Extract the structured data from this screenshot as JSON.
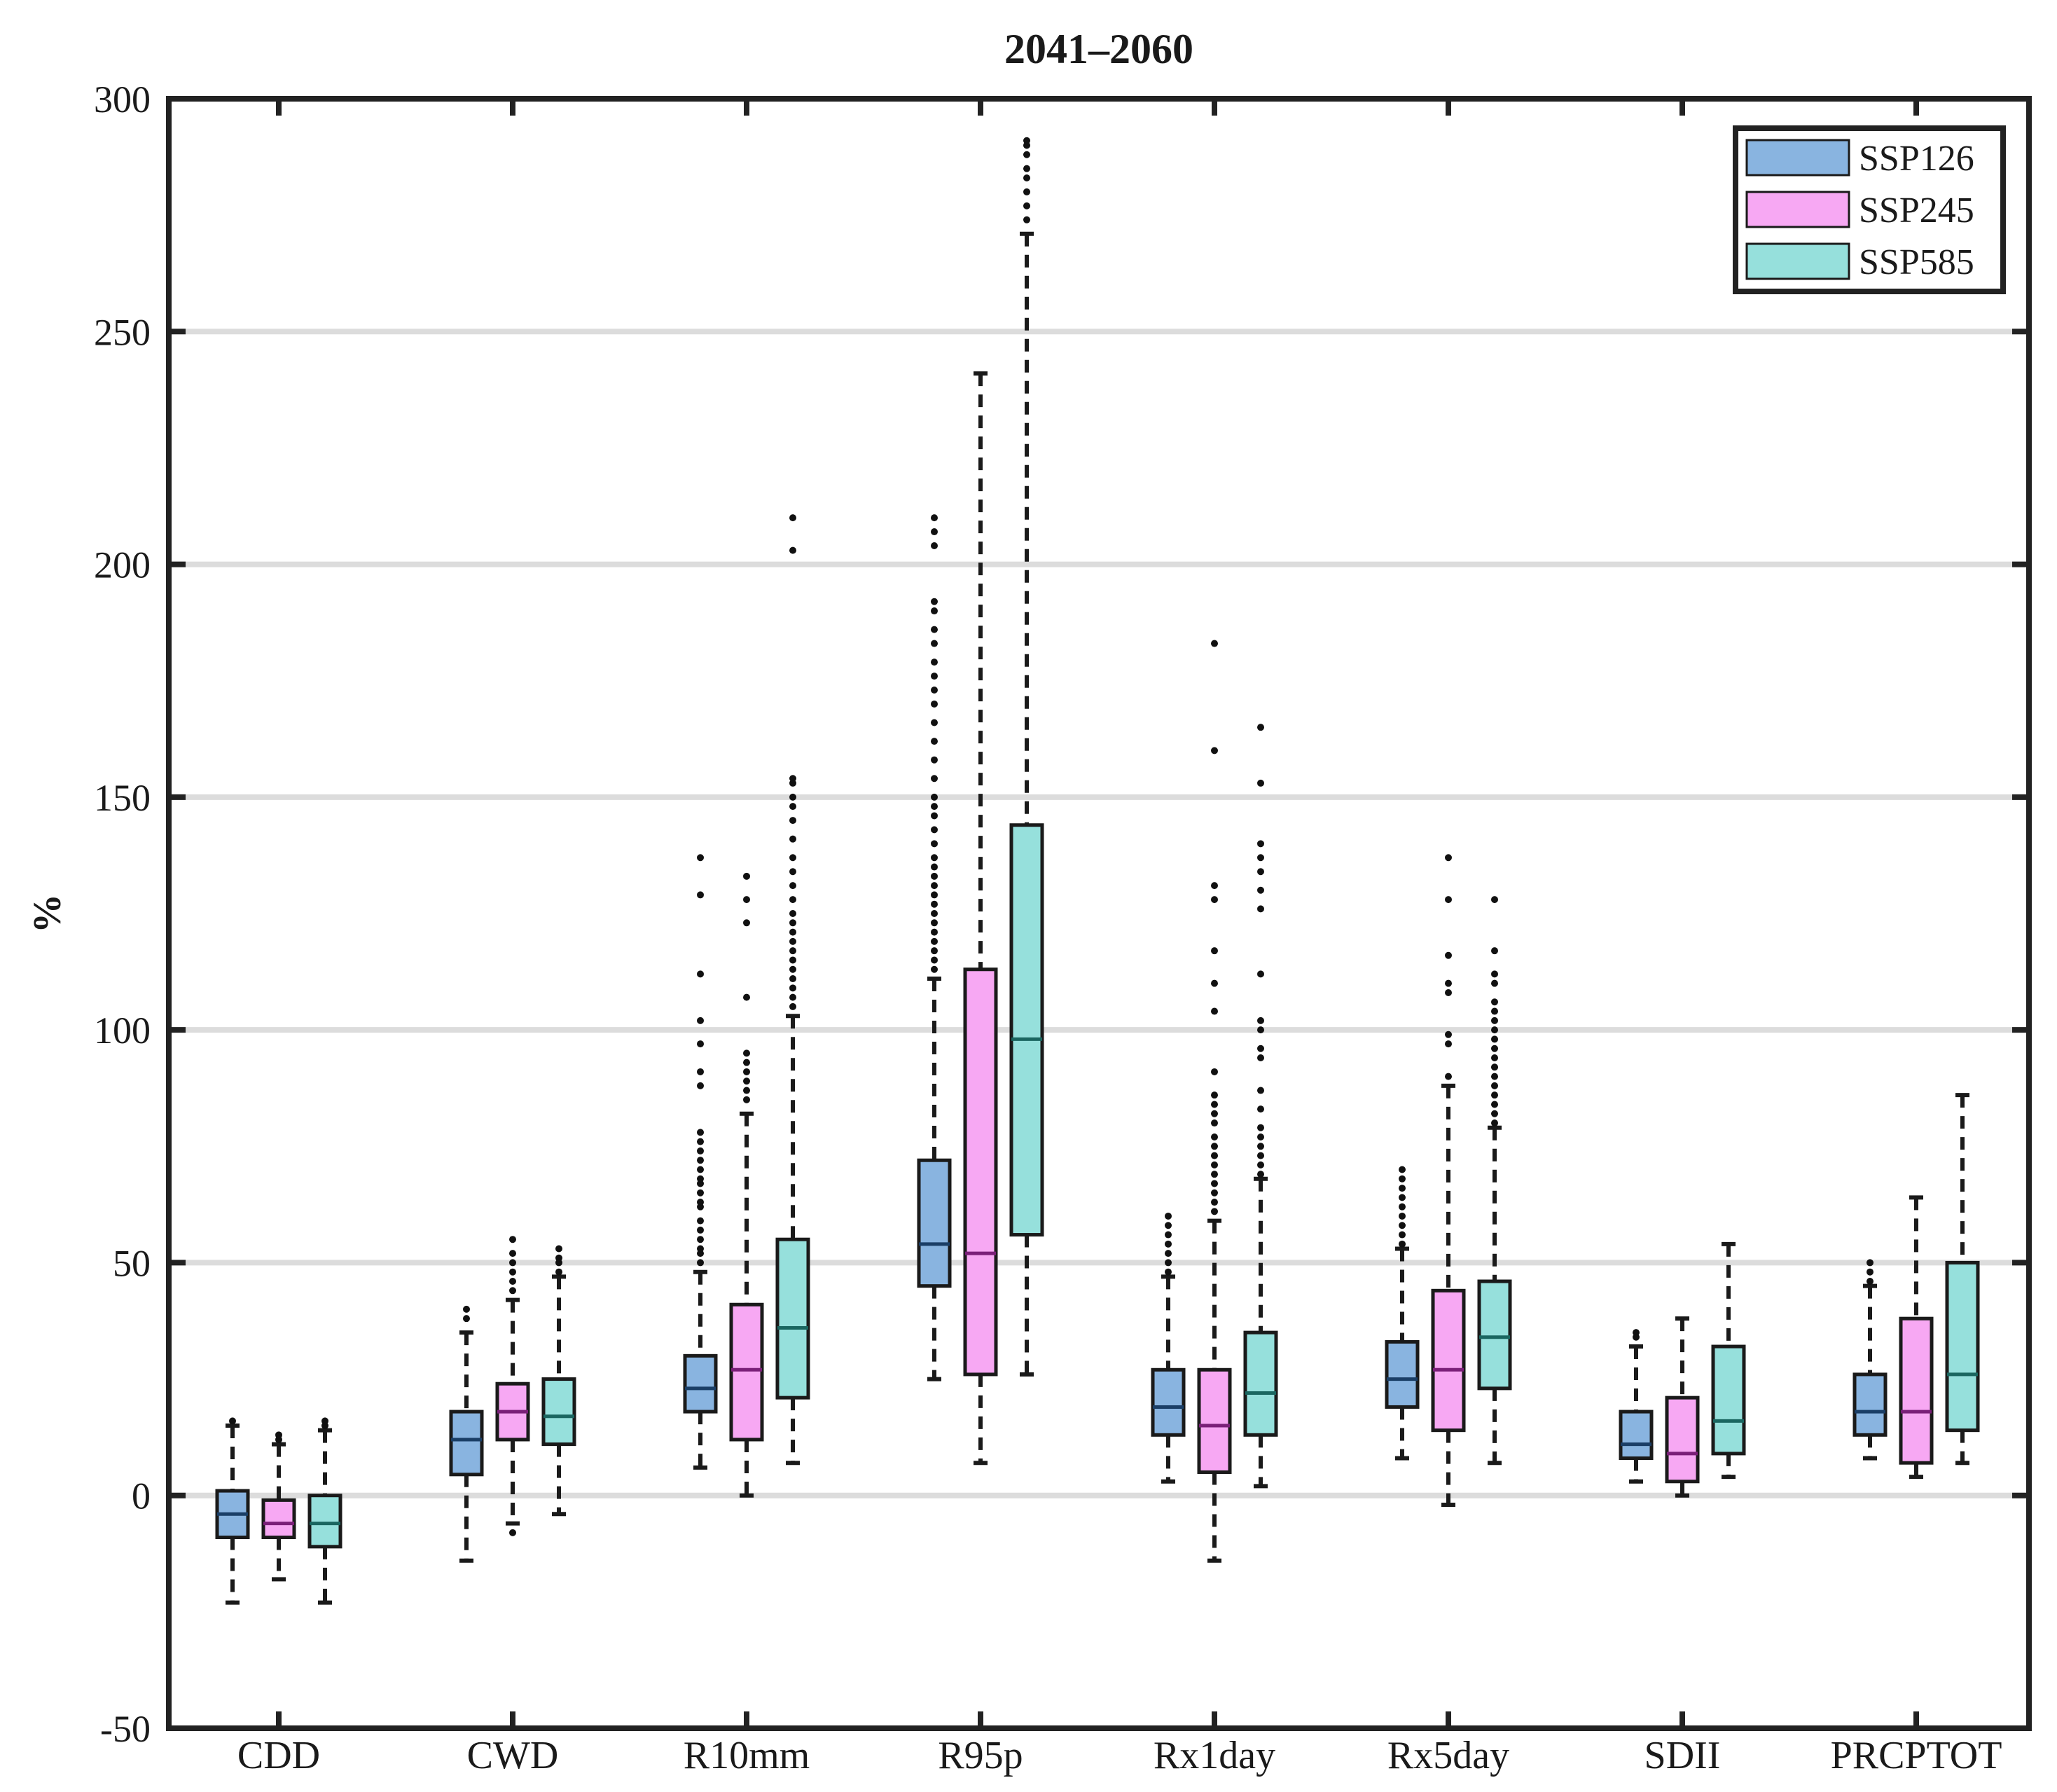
{
  "chart_data": {
    "type": "box",
    "title": "2041–2060",
    "xlabel": "",
    "ylabel": "%",
    "ylim": [
      -50,
      300
    ],
    "yticks": [
      -50,
      0,
      50,
      100,
      150,
      200,
      250,
      300
    ],
    "ytick_labels": [
      "-50",
      "0",
      "50",
      "100",
      "150",
      "200",
      "250",
      "300"
    ],
    "grid": "horizontal",
    "legend_position": "top-right",
    "categories": [
      "CDD",
      "CWD",
      "R10mm",
      "R95p",
      "Rx1day",
      "Rx5day",
      "SDII",
      "PRCPTOT"
    ],
    "series": [
      {
        "name": "SSP126",
        "color": "#89b4e0",
        "median_color": "#1a3e66",
        "boxes": [
          {
            "wlow": -23,
            "q1": -9,
            "median": -4,
            "q3": 1,
            "whigh": 15,
            "outliers": [
              16
            ]
          },
          {
            "wlow": -14,
            "q1": 4.5,
            "median": 12,
            "q3": 18,
            "whigh": 35,
            "outliers": [
              38,
              40
            ]
          },
          {
            "wlow": 6,
            "q1": 18,
            "median": 23,
            "q3": 30,
            "whigh": 48,
            "outliers": [
              50,
              52,
              53,
              55,
              57,
              59,
              62,
              63,
              65,
              67,
              68,
              70,
              72,
              74,
              76,
              78,
              88,
              91,
              97,
              102,
              112,
              129,
              137
            ]
          },
          {
            "wlow": 25,
            "q1": 45,
            "median": 54,
            "q3": 72,
            "whigh": 111,
            "outliers": [
              113,
              115,
              117,
              119,
              121,
              123,
              125,
              127,
              129,
              131,
              133,
              135,
              137,
              140,
              143,
              146,
              148,
              150,
              154,
              158,
              162,
              166,
              170,
              173,
              176,
              179,
              183,
              186,
              190,
              192,
              204,
              207,
              210
            ]
          },
          {
            "wlow": 3,
            "q1": 13,
            "median": 19,
            "q3": 27,
            "whigh": 47,
            "outliers": [
              48,
              50,
              52,
              54,
              56,
              58,
              60
            ]
          },
          {
            "wlow": 8,
            "q1": 19,
            "median": 25,
            "q3": 33,
            "whigh": 53,
            "outliers": [
              54,
              56,
              58,
              60,
              62,
              64,
              66,
              68,
              70
            ]
          },
          {
            "wlow": 3,
            "q1": 8,
            "median": 11,
            "q3": 18,
            "whigh": 32,
            "outliers": [
              34,
              35
            ]
          },
          {
            "wlow": 8,
            "q1": 13,
            "median": 18,
            "q3": 26,
            "whigh": 45,
            "outliers": [
              46,
              48,
              50
            ]
          }
        ]
      },
      {
        "name": "SSP245",
        "color": "#f7a8f3",
        "median_color": "#7a1f78",
        "boxes": [
          {
            "wlow": -18,
            "q1": -9,
            "median": -6,
            "q3": -1,
            "whigh": 11,
            "outliers": [
              12,
              13
            ]
          },
          {
            "wlow": -6,
            "q1": 12,
            "median": 18,
            "q3": 24,
            "whigh": 42,
            "outliers": [
              -8,
              44,
              46,
              48,
              50,
              52,
              55
            ]
          },
          {
            "wlow": 0,
            "q1": 12,
            "median": 27,
            "q3": 41,
            "whigh": 82,
            "outliers": [
              85,
              87,
              89,
              91,
              93,
              95,
              107,
              123,
              128,
              133
            ]
          },
          {
            "wlow": 7,
            "q1": 26,
            "median": 52,
            "q3": 113,
            "whigh": 241,
            "outliers": []
          },
          {
            "wlow": -14,
            "q1": 5,
            "median": 15,
            "q3": 27,
            "whigh": 59,
            "outliers": [
              61,
              63,
              65,
              67,
              69,
              71,
              73,
              75,
              77,
              80,
              82,
              84,
              86,
              91,
              104,
              110,
              117,
              128,
              131,
              160,
              183
            ]
          },
          {
            "wlow": -2,
            "q1": 14,
            "median": 27,
            "q3": 44,
            "whigh": 88,
            "outliers": [
              90,
              97,
              99,
              108,
              110,
              116,
              128,
              137
            ]
          },
          {
            "wlow": 0,
            "q1": 3,
            "median": 9,
            "q3": 21,
            "whigh": 38,
            "outliers": []
          },
          {
            "wlow": 4,
            "q1": 7,
            "median": 18,
            "q3": 38,
            "whigh": 64,
            "outliers": []
          }
        ]
      },
      {
        "name": "SSP585",
        "color": "#96e0dc",
        "median_color": "#1a6660",
        "boxes": [
          {
            "wlow": -23,
            "q1": -11,
            "median": -6,
            "q3": 0,
            "whigh": 14,
            "outliers": [
              15,
              16
            ]
          },
          {
            "wlow": -4,
            "q1": 11,
            "median": 17,
            "q3": 25,
            "whigh": 47,
            "outliers": [
              48,
              50,
              51,
              53
            ]
          },
          {
            "wlow": 7,
            "q1": 21,
            "median": 36,
            "q3": 55,
            "whigh": 103,
            "outliers": [
              105,
              107,
              109,
              111,
              113,
              115,
              117,
              119,
              121,
              123,
              125,
              128,
              131,
              134,
              137,
              141,
              145,
              148,
              150,
              153,
              154,
              203,
              210
            ]
          },
          {
            "wlow": 26,
            "q1": 56,
            "median": 98,
            "q3": 144,
            "whigh": 271,
            "outliers": [
              274,
              277,
              280,
              283,
              285,
              288,
              290,
              291
            ]
          },
          {
            "wlow": 2,
            "q1": 13,
            "median": 22,
            "q3": 35,
            "whigh": 68,
            "outliers": [
              69,
              71,
              73,
              75,
              77,
              79,
              83,
              87,
              94,
              96,
              100,
              102,
              112,
              126,
              130,
              134,
              137,
              140,
              153,
              165
            ]
          },
          {
            "wlow": 7,
            "q1": 23,
            "median": 34,
            "q3": 46,
            "whigh": 79,
            "outliers": [
              80,
              82,
              84,
              86,
              88,
              90,
              92,
              94,
              96,
              98,
              100,
              102,
              104,
              106,
              110,
              112,
              117,
              128
            ]
          },
          {
            "wlow": 4,
            "q1": 9,
            "median": 16,
            "q3": 32,
            "whigh": 54,
            "outliers": []
          },
          {
            "wlow": 7,
            "q1": 14,
            "median": 26,
            "q3": 50,
            "whigh": 86,
            "outliers": []
          }
        ]
      }
    ]
  }
}
